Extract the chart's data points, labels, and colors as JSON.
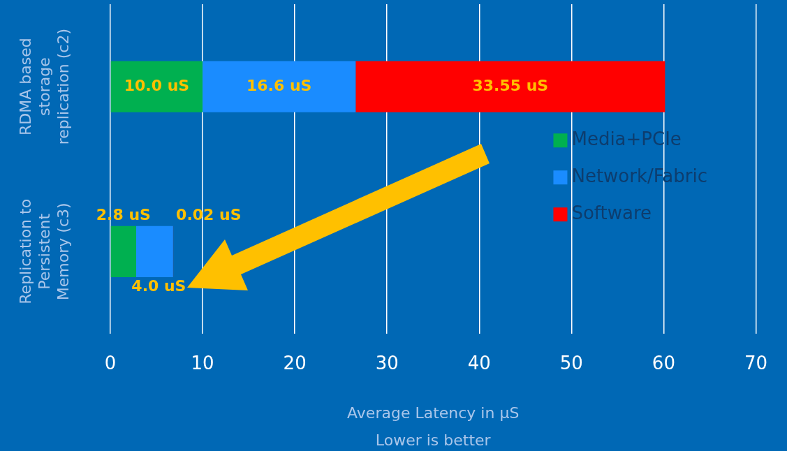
{
  "chart_data": {
    "type": "bar",
    "orientation": "horizontal",
    "stacked": true,
    "categories": [
      "RDMA based storage replication (c2)",
      "Replication to Persistent Memory (c3)"
    ],
    "series": [
      {
        "name": "Media+PCIe",
        "color": "#00b050",
        "values": [
          10.0,
          2.8
        ],
        "value_labels": [
          "10.0 uS",
          "2.8 uS"
        ]
      },
      {
        "name": "Network/Fabric",
        "color": "#1a8cff",
        "values": [
          16.6,
          4.0
        ],
        "value_labels": [
          "16.6 uS",
          "4.0 uS"
        ]
      },
      {
        "name": "Software",
        "color": "#ff0000",
        "values": [
          33.55,
          0.02
        ],
        "value_labels": [
          "33.55 uS",
          "0.02 uS"
        ]
      }
    ],
    "xlabel": "Average Latency in μS",
    "annotations": [
      "Lower is better"
    ],
    "xlim": [
      0,
      70
    ],
    "xticks": [
      0,
      10,
      20,
      30,
      40,
      50,
      60,
      70
    ],
    "grid": "x",
    "legend": "right"
  }
}
